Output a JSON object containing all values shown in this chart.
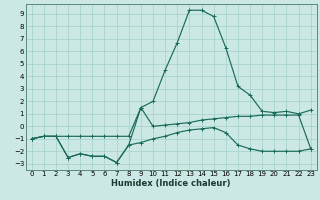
{
  "xlabel": "Humidex (Indice chaleur)",
  "bg_color": "#cce8e4",
  "grid_color": "#aad4ce",
  "line_color": "#1a6b5a",
  "xlim": [
    -0.5,
    23.5
  ],
  "ylim": [
    -3.5,
    9.8
  ],
  "xticks": [
    0,
    1,
    2,
    3,
    4,
    5,
    6,
    7,
    8,
    9,
    10,
    11,
    12,
    13,
    14,
    15,
    16,
    17,
    18,
    19,
    20,
    21,
    22,
    23
  ],
  "yticks": [
    -3,
    -2,
    -1,
    0,
    1,
    2,
    3,
    4,
    5,
    6,
    7,
    8,
    9
  ],
  "line1_x": [
    0,
    1,
    2,
    3,
    4,
    5,
    6,
    7,
    8,
    9,
    10,
    11,
    12,
    13,
    14,
    15,
    16,
    17,
    18,
    19,
    20,
    21,
    22,
    23
  ],
  "line1_y": [
    -1.0,
    -0.8,
    -0.8,
    -0.8,
    -0.8,
    -0.8,
    -0.8,
    -0.8,
    -0.8,
    1.5,
    0.0,
    0.1,
    0.2,
    0.3,
    0.5,
    0.6,
    0.7,
    0.8,
    0.8,
    0.9,
    0.9,
    0.9,
    0.9,
    -1.8
  ],
  "line2_x": [
    0,
    1,
    2,
    3,
    4,
    5,
    6,
    7,
    8,
    9,
    10,
    11,
    12,
    13,
    14,
    15,
    16,
    17,
    18,
    19,
    20,
    21,
    22,
    23
  ],
  "line2_y": [
    -1.0,
    -0.8,
    -0.8,
    -2.5,
    -2.2,
    -2.4,
    -2.4,
    -2.9,
    -1.5,
    1.5,
    2.0,
    4.5,
    6.7,
    9.3,
    9.3,
    8.8,
    6.3,
    3.2,
    2.5,
    1.2,
    1.1,
    1.2,
    1.0,
    1.3
  ],
  "line3_x": [
    0,
    1,
    2,
    3,
    4,
    5,
    6,
    7,
    8,
    9,
    10,
    11,
    12,
    13,
    14,
    15,
    16,
    17,
    18,
    19,
    20,
    21,
    22,
    23
  ],
  "line3_y": [
    -1.0,
    -0.8,
    -0.8,
    -2.5,
    -2.2,
    -2.4,
    -2.4,
    -2.9,
    -1.5,
    -1.3,
    -1.0,
    -0.8,
    -0.5,
    -0.3,
    -0.2,
    -0.1,
    -0.5,
    -1.5,
    -1.8,
    -2.0,
    -2.0,
    -2.0,
    -2.0,
    -1.8
  ]
}
